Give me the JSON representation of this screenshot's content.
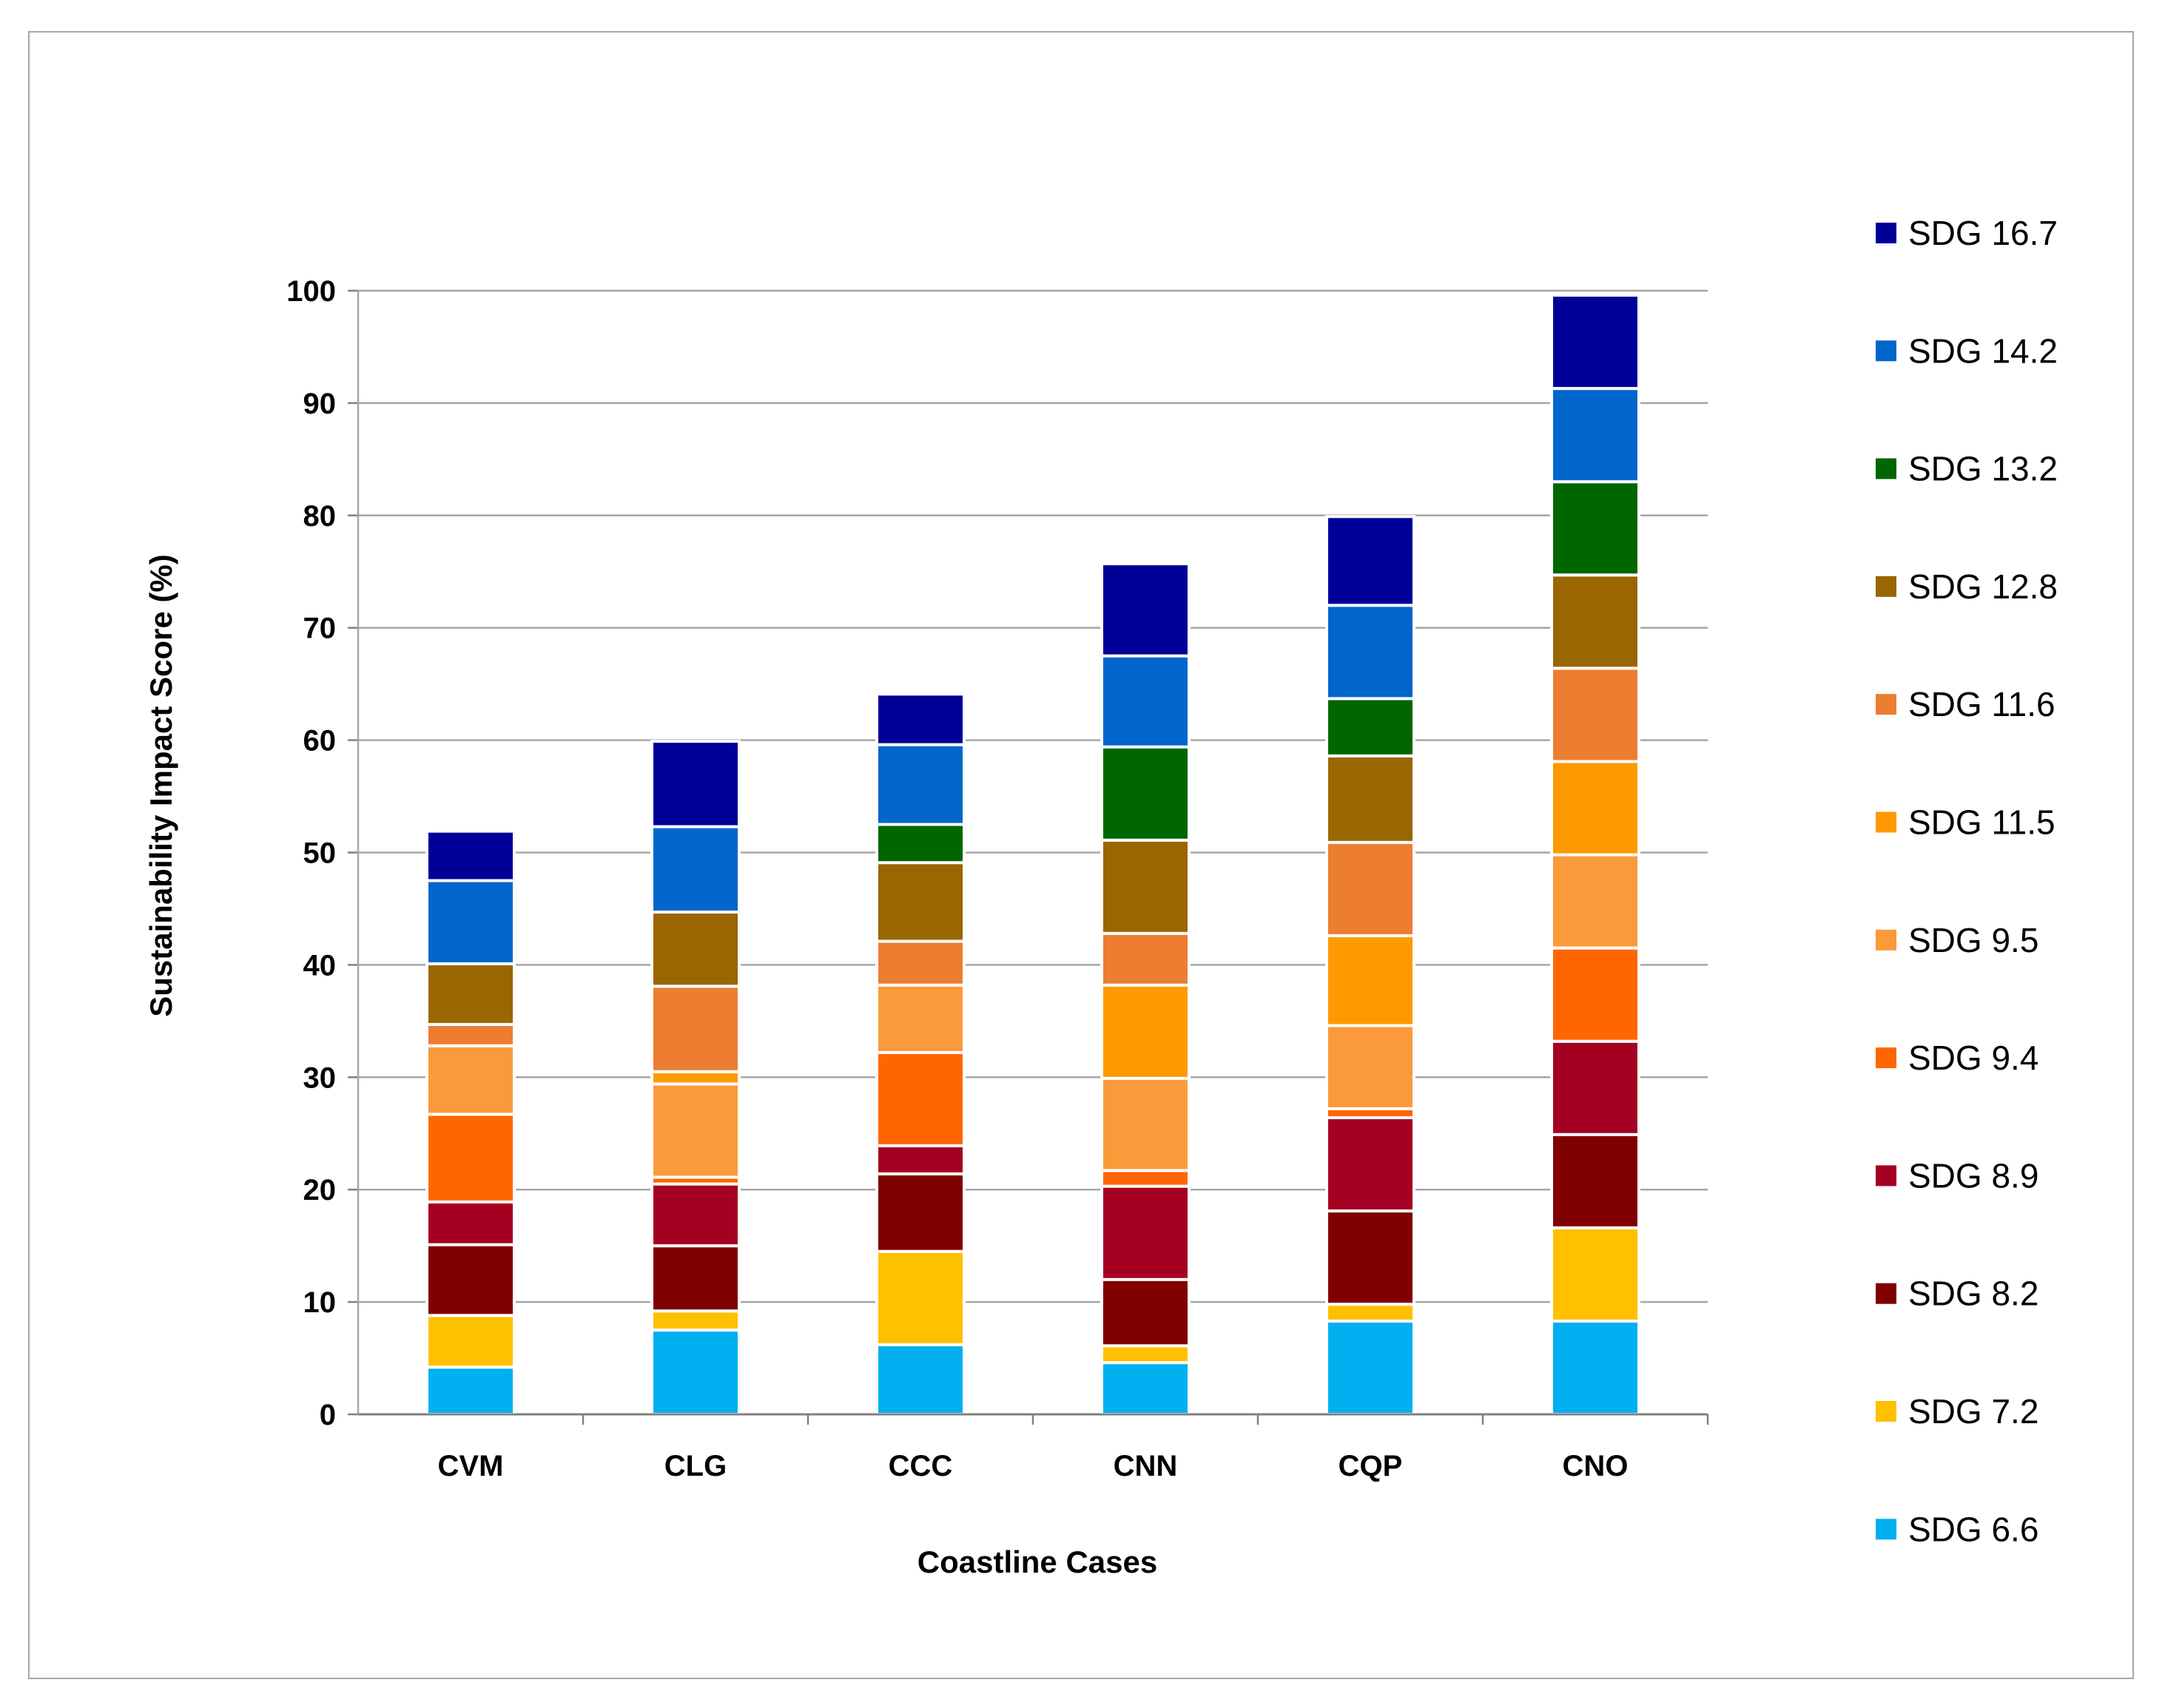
{
  "chart_data": {
    "type": "bar",
    "stacked": true,
    "xlabel": "Coastline Cases",
    "ylabel": "Sustainability Impact Score (%)",
    "ylim": [
      0,
      100
    ],
    "yticks": [
      0,
      10,
      20,
      30,
      40,
      50,
      60,
      70,
      80,
      90,
      100
    ],
    "grid": true,
    "legend_position": "right",
    "categories": [
      "CVM",
      "CLG",
      "CCC",
      "CNN",
      "CQP",
      "CNO"
    ],
    "series": [
      {
        "name": "SDG 6.6",
        "color": "#00b0f0",
        "values": [
          4.2,
          7.5,
          6.2,
          4.6,
          8.3,
          8.3
        ]
      },
      {
        "name": "SDG 7.2",
        "color": "#ffc000",
        "values": [
          4.6,
          1.7,
          8.3,
          1.5,
          1.5,
          8.3
        ]
      },
      {
        "name": "SDG 8.2",
        "color": "#800000",
        "values": [
          6.3,
          5.8,
          6.9,
          5.9,
          8.3,
          8.3
        ]
      },
      {
        "name": "SDG 8.9",
        "color": "#a50021",
        "values": [
          3.8,
          5.5,
          2.5,
          8.3,
          8.3,
          8.3
        ]
      },
      {
        "name": "SDG 9.4",
        "color": "#ff6600",
        "values": [
          7.8,
          0.6,
          8.3,
          1.4,
          0.8,
          8.3
        ]
      },
      {
        "name": "SDG 9.5",
        "color": "#fb9a3a",
        "values": [
          6.1,
          8.3,
          6.0,
          8.2,
          7.4,
          8.3
        ]
      },
      {
        "name": "SDG 11.5",
        "color": "#ff9900",
        "values": [
          0.0,
          1.1,
          0.0,
          8.3,
          8.0,
          8.3
        ]
      },
      {
        "name": "SDG 11.6",
        "color": "#ed7d31",
        "values": [
          1.9,
          7.6,
          3.9,
          4.6,
          8.3,
          8.3
        ]
      },
      {
        "name": "SDG 12.8",
        "color": "#996600",
        "values": [
          5.4,
          6.6,
          7.0,
          8.3,
          7.7,
          8.3
        ]
      },
      {
        "name": "SDG 13.2",
        "color": "#006600",
        "values": [
          0.0,
          0.0,
          3.4,
          8.3,
          5.1,
          8.3
        ]
      },
      {
        "name": "SDG 14.2",
        "color": "#0066cc",
        "values": [
          7.4,
          7.6,
          7.1,
          8.1,
          8.3,
          8.3
        ]
      },
      {
        "name": "SDG 16.7",
        "color": "#000099",
        "values": [
          4.4,
          7.6,
          4.5,
          8.2,
          7.9,
          8.3
        ]
      }
    ]
  }
}
